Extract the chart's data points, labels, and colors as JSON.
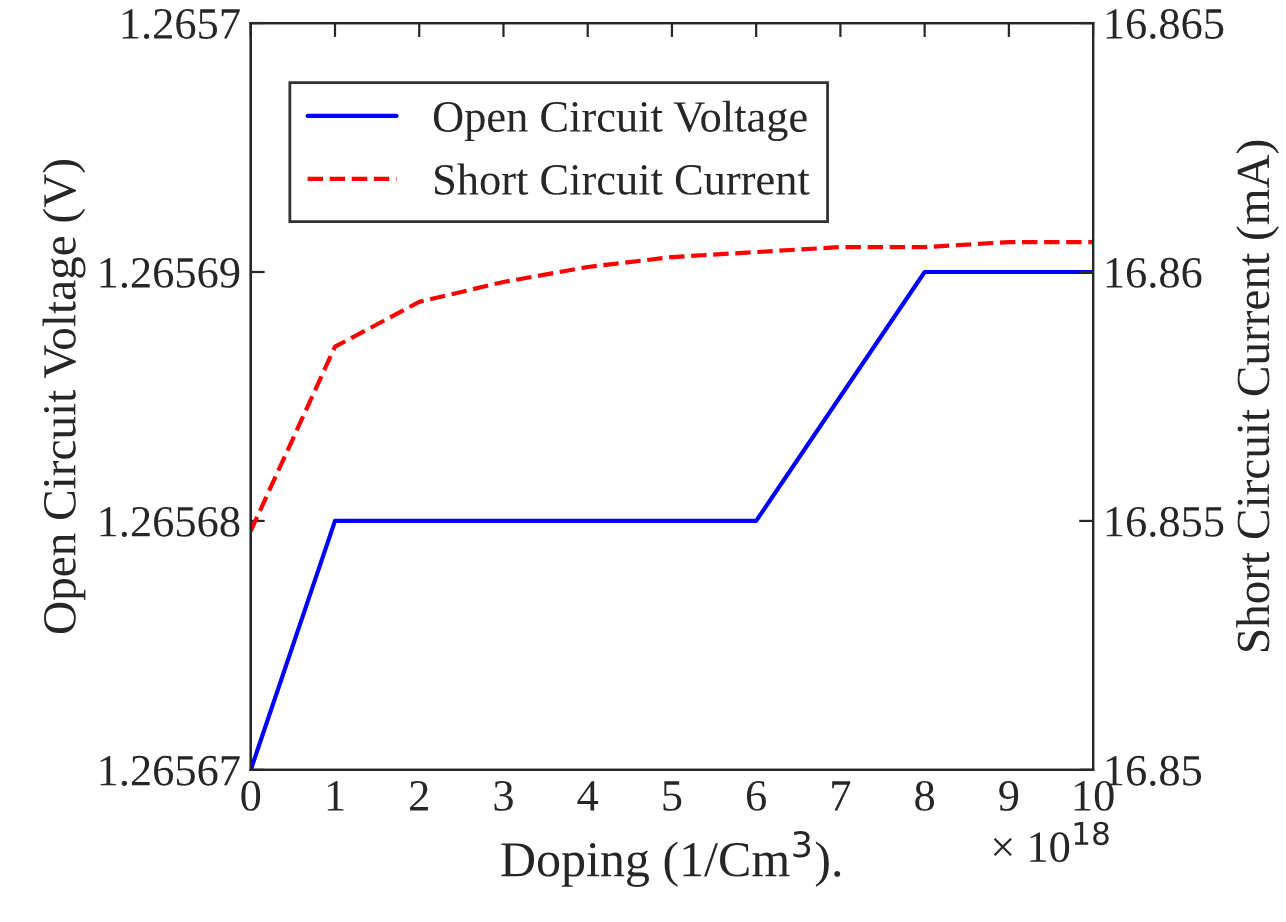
{
  "chart_data": {
    "type": "line",
    "xlabel": "Doping (1/Cm$^{3}$).",
    "ylabel": "Open Circuit Voltage (V)",
    "y2label": "Short Circuit Current (mA)",
    "annotations": [
      "× 10$^{18}$"
    ],
    "series": [
      {
        "name": "Open Circuit Voltage",
        "color": "#0000ff",
        "line_style": "solid",
        "x": [
          0,
          1,
          6,
          8,
          10
        ],
        "values": [
          1.26567,
          1.26568,
          1.26568,
          1.26569,
          1.26569
        ]
      },
      {
        "name": "Short Circuit Current",
        "color": "#ff0000",
        "line_style": "dashed",
        "axis": "y2",
        "x": [
          0,
          1,
          2,
          3,
          4,
          5,
          6,
          7,
          8,
          9,
          10
        ],
        "values": [
          16.8548,
          16.8585,
          16.8594,
          16.8598,
          16.8601,
          16.8603,
          16.8604,
          16.8605,
          16.8605,
          16.8606,
          16.8606
        ]
      }
    ],
    "xlim": [
      0,
      10
    ],
    "xticks": [
      0,
      1,
      2,
      3,
      4,
      5,
      6,
      7,
      8,
      9,
      10
    ],
    "ylim": [
      1.26567,
      1.2657
    ],
    "yticks": [
      1.26567,
      1.26568,
      1.26569,
      1.2657
    ],
    "y2lim": [
      16.85,
      16.865
    ],
    "y2ticks": [
      16.85,
      16.855,
      16.86,
      16.865
    ],
    "legend": "top left",
    "grid": false
  }
}
